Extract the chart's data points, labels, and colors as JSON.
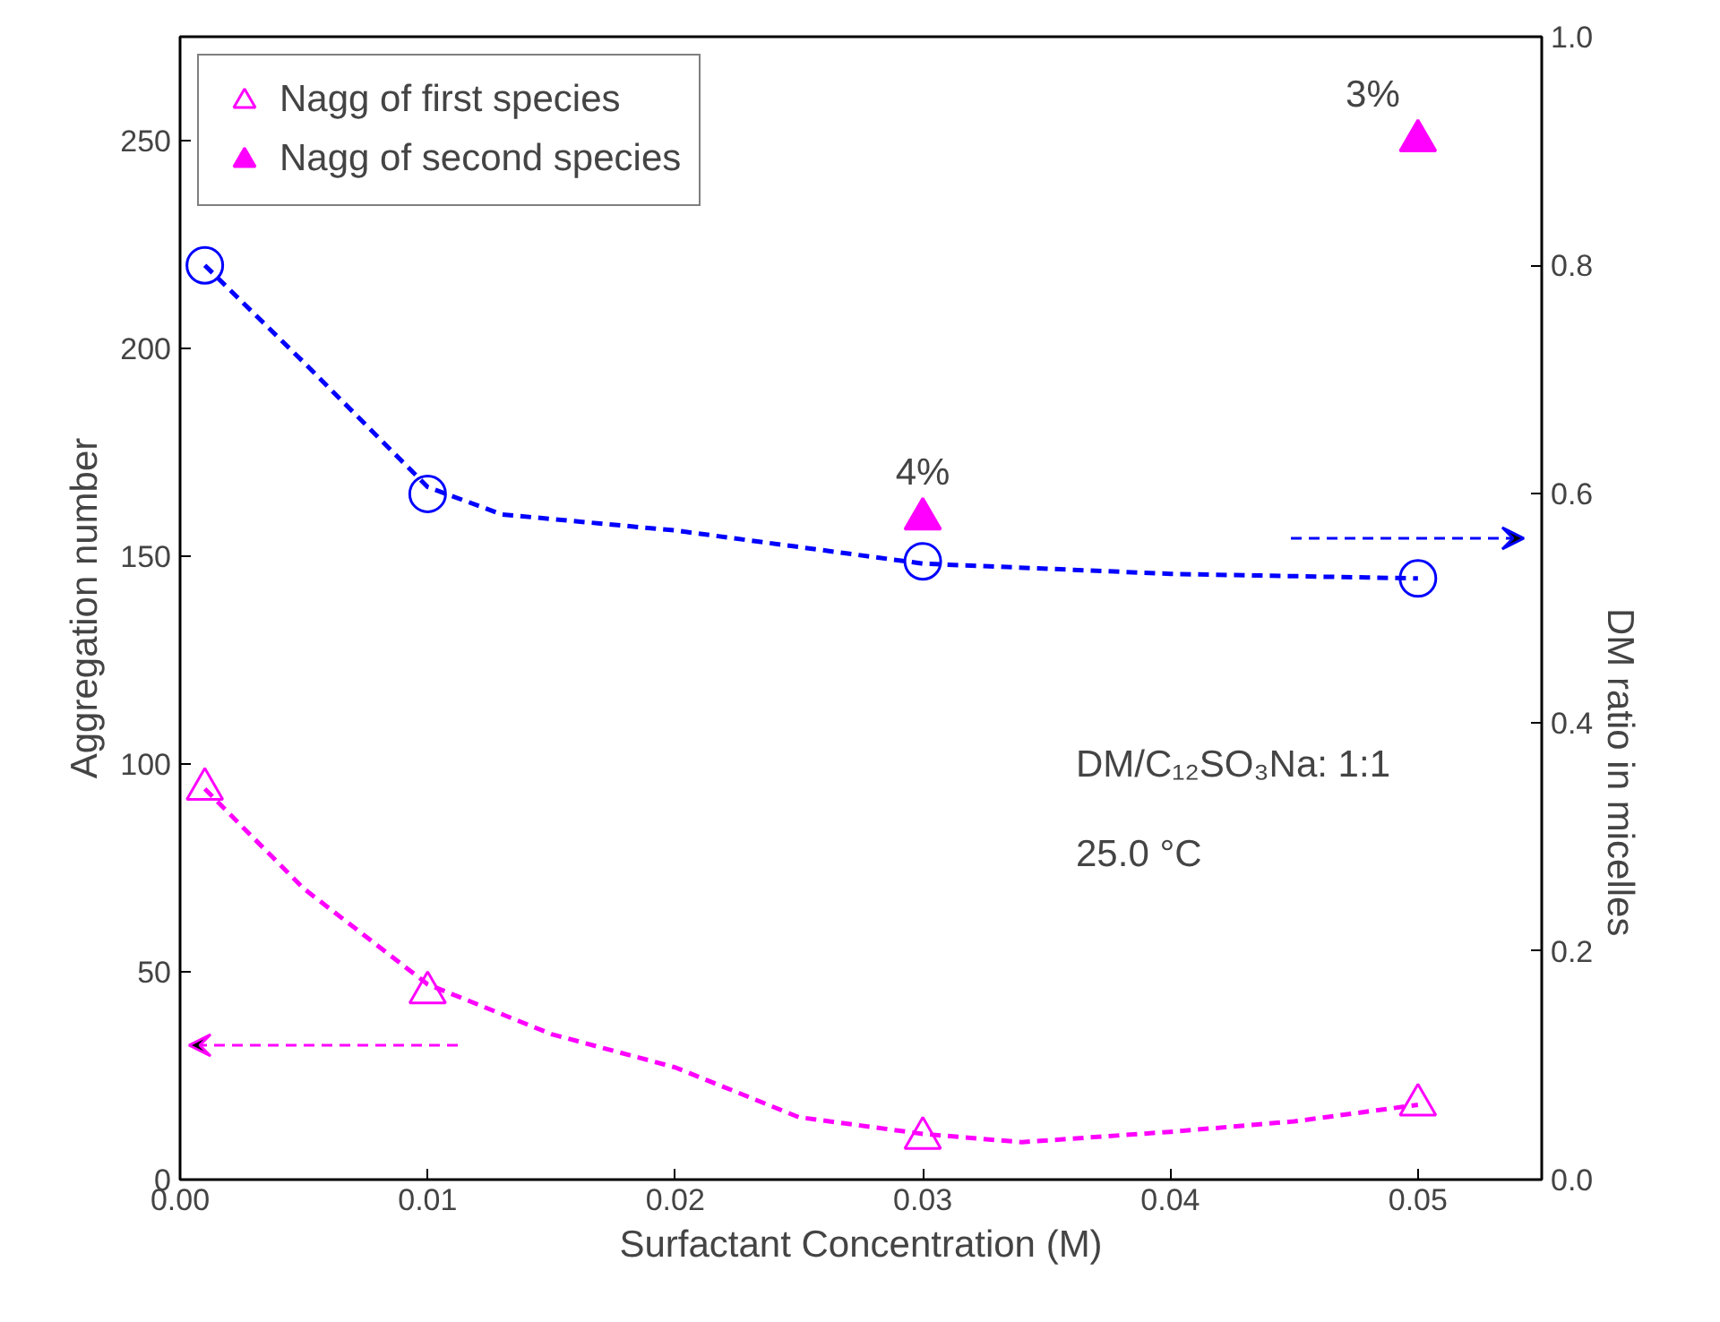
{
  "chart_data": {
    "type": "scatter",
    "xlabel": "Surfactant Concentration (M)",
    "ylabel": "Aggregation number",
    "y2label": "DM ratio in micelles",
    "xlim": [
      0,
      0.055
    ],
    "xticks": [
      {
        "value": 0,
        "label": "0.00"
      },
      0.01,
      0.02,
      0.03,
      0.04,
      0.05
    ],
    "ylim": [
      0,
      275
    ],
    "yticks": [
      0,
      50,
      100,
      150,
      200,
      250
    ],
    "y2lim": [
      0,
      1.0
    ],
    "y2ticks": [
      {
        "value": 0,
        "label": "0.0"
      },
      0.2,
      0.4,
      0.6,
      0.8,
      {
        "value": 1,
        "label": "1.0"
      }
    ],
    "grid": false,
    "legend": "top left",
    "annotations": [
      "DM/C₁₂SO₃Na: 1:1",
      "25.0 °C",
      {
        "text": "4%",
        "x": 0.03,
        "y": 159
      },
      {
        "text": "3%",
        "x": 0.05,
        "y": 250
      }
    ],
    "series": [
      {
        "name": "Nagg of first species",
        "marker": "triangle",
        "color": "#ff00ff",
        "x": [
          0.001,
          0.01,
          0.03,
          0.05
        ],
        "values": [
          94,
          45,
          10,
          18
        ]
      },
      {
        "name": "Nagg of second species",
        "marker": "triangle",
        "color": "#ff00ff",
        "x": [
          0.03,
          0.05
        ],
        "values": [
          159,
          250
        ]
      },
      {
        "marker": "circle",
        "axis": "y2",
        "color": "#0000ff",
        "x": [
          0.001,
          0.01,
          0.03,
          0.05
        ],
        "values": [
          0.8,
          0.6,
          0.541,
          0.526
        ]
      },
      {
        "type": "line",
        "marker": "none",
        "line_style": "dashed",
        "color": "#ff00ff",
        "x": [
          0.001,
          0.005,
          0.01,
          0.015,
          0.02,
          0.025,
          0.03,
          0.034,
          0.04,
          0.045,
          0.05
        ],
        "values": [
          94,
          70,
          47,
          35,
          27,
          15,
          11,
          9,
          11.5,
          14,
          18
        ]
      },
      {
        "type": "line",
        "marker": "none",
        "line_style": "dashed",
        "axis": "y2",
        "color": "#0000ff",
        "x": [
          0.001,
          0.005,
          0.01,
          0.013,
          0.02,
          0.03,
          0.04,
          0.05
        ],
        "values": [
          0.8,
          0.715,
          0.606,
          0.582,
          0.568,
          0.539,
          0.53,
          0.526
        ]
      }
    ]
  }
}
